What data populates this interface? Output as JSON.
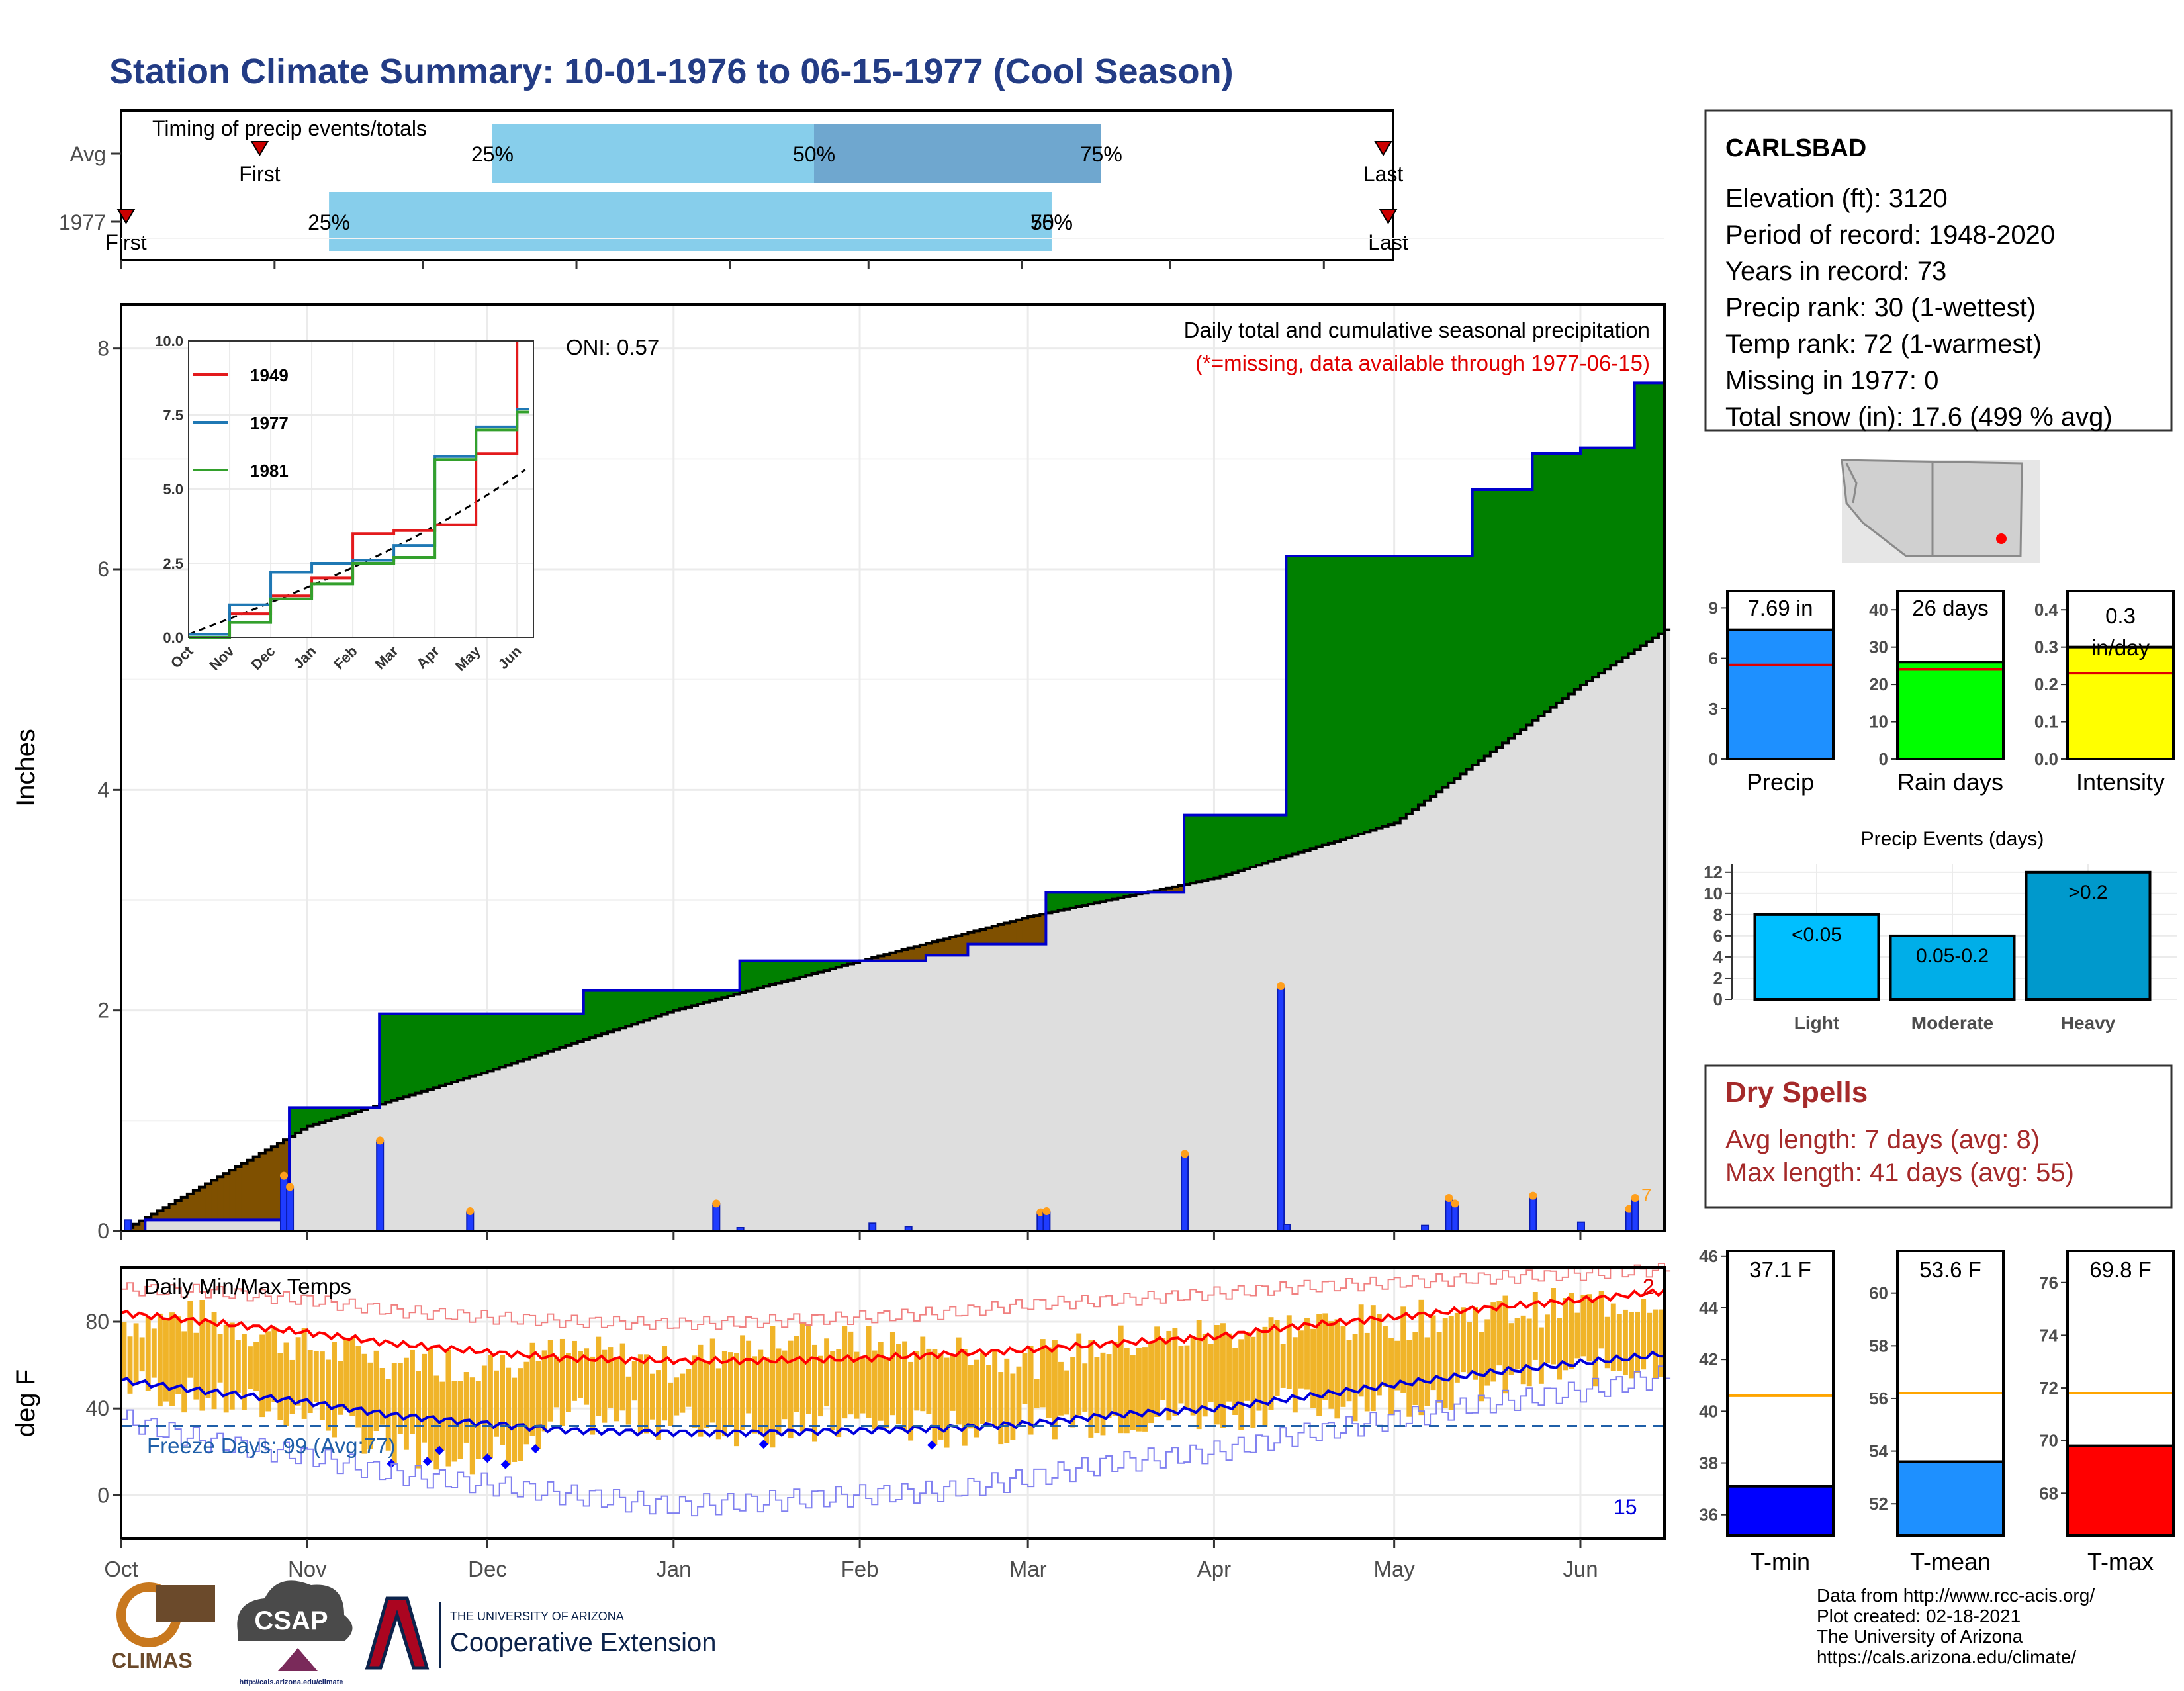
{
  "title": "Station Climate Summary: 10-01-1976 to 06-15-1977 (Cool Season)",
  "timing": {
    "title": "Timing of precip events/totals",
    "rows": [
      {
        "label": "Avg",
        "first": "First",
        "last": "Last",
        "p25": "25%",
        "p50": "50%",
        "p75": "75%"
      },
      {
        "label": "1977",
        "first": "First",
        "last": "Last",
        "p25": "25%",
        "p50": "50%",
        "p75": "75%"
      }
    ]
  },
  "station": {
    "name": "CARLSBAD",
    "lines": [
      "Elevation (ft): 3120",
      "Period of record: 1948-2020",
      "Years in record: 73",
      "Precip rank: 30 (1-wettest)",
      "Temp rank: 72 (1-warmest)",
      "Missing in 1977: 0",
      "Total snow (in): 17.6 (499 % avg)"
    ]
  },
  "precip_panel": {
    "title": "Daily total and cumulative seasonal precipitation",
    "missing_note": "(*=missing, data available through 1977-06-15)",
    "oni": "ONI: 0.57",
    "ylabel": "Inches",
    "yticks": [
      "0",
      "2",
      "4",
      "6",
      "8"
    ],
    "months": [
      "Oct",
      "Nov",
      "Dec",
      "Jan",
      "Feb",
      "Mar",
      "Apr",
      "May",
      "Jun"
    ],
    "end_label": "7"
  },
  "inset": {
    "yticks": [
      "0.0",
      "2.5",
      "5.0",
      "7.5",
      "10.0"
    ],
    "months": [
      "Oct",
      "Nov",
      "Dec",
      "Jan",
      "Feb",
      "Mar",
      "Apr",
      "May",
      "Jun"
    ],
    "legend": [
      {
        "name": "1949",
        "color": "#e31a1c"
      },
      {
        "name": "1977",
        "color": "#1f78b4"
      },
      {
        "name": "1981",
        "color": "#33a02c"
      }
    ]
  },
  "temp_panel": {
    "title": "Daily Min/Max Temps",
    "ylabel": "deg F",
    "yticks": [
      "0",
      "40",
      "80"
    ],
    "freeze": "Freeze Days: 99 (Avg:77)",
    "top_count": "2",
    "bottom_count": "15"
  },
  "summary_bars": [
    {
      "label": "Precip",
      "value_text": "7.69 in",
      "value": 7.69,
      "avg": 5.6,
      "ymax": 10,
      "yticks": [
        "0",
        "3",
        "6",
        "9"
      ],
      "color": "#1e90ff"
    },
    {
      "label": "Rain days",
      "value_text": "26 days",
      "value": 26,
      "avg": 24,
      "ymax": 45,
      "yticks": [
        "0",
        "10",
        "20",
        "30",
        "40"
      ],
      "color": "#00ff00"
    },
    {
      "label": "Intensity",
      "value_text": "0.3 in/day",
      "value": 0.3,
      "avg": 0.23,
      "ymax": 0.45,
      "yticks": [
        "0.0",
        "0.1",
        "0.2",
        "0.3",
        "0.4"
      ],
      "color": "#ffff00"
    }
  ],
  "events": {
    "title": "Precip Events (days)",
    "yticks": [
      "0",
      "2",
      "4",
      "6",
      "8",
      "10",
      "12"
    ],
    "bars": [
      {
        "label": "Light",
        "bar_text": "<0.05",
        "value": 8,
        "color": "#00bfff"
      },
      {
        "label": "Moderate",
        "bar_text": "0.05-0.2",
        "value": 6,
        "color": "#00aee8"
      },
      {
        "label": "Heavy",
        "bar_text": ">0.2",
        "value": 12,
        "color": "#0099cc"
      }
    ]
  },
  "dry_spells": {
    "title": "Dry Spells",
    "avg": "Avg length: 7 days (avg: 8)",
    "max": "Max length: 41 days (avg: 55)"
  },
  "temp_bars": [
    {
      "label": "T-min",
      "value_text": "37.1 F",
      "value": 37.1,
      "avg": 40.6,
      "ymin": 35.2,
      "ymax": 46.2,
      "ticks": [
        "36",
        "38",
        "40",
        "42",
        "44",
        "46"
      ],
      "color": "#0000ff"
    },
    {
      "label": "T-mean",
      "value_text": "53.6 F",
      "value": 53.6,
      "avg": 56.2,
      "ymin": 50.8,
      "ymax": 61.6,
      "ticks": [
        "52",
        "54",
        "56",
        "58",
        "60"
      ],
      "color": "#1e90ff"
    },
    {
      "label": "T-max",
      "value_text": "69.8 F",
      "value": 69.8,
      "avg": 71.8,
      "ymin": 66.4,
      "ymax": 77.2,
      "ticks": [
        "68",
        "70",
        "72",
        "74",
        "76"
      ],
      "color": "#ff0000"
    }
  ],
  "credits": [
    "Data from http://www.rcc-acis.org/",
    "Plot created: 02-18-2021",
    "The University of Arizona",
    "https://cals.arizona.edu/climate/"
  ],
  "logos": {
    "climas": "CLIMAS",
    "csap": "CSAP",
    "csap_url": "http://cals.arizona.edu/climate",
    "ua_small": "THE UNIVERSITY OF ARIZONA",
    "ua_big": "Cooperative Extension"
  },
  "chart_data": [
    {
      "type": "area",
      "name": "cumulative-precip",
      "x_unit": "date",
      "xlabel": "",
      "ylabel": "Inches",
      "ylim": [
        0,
        8.4
      ],
      "grid": true,
      "series": [
        {
          "values_x": [
            "1976-10-01",
            "1976-10-05",
            "1976-10-29",
            "1976-11-12",
            "1976-11-13",
            "1976-12-17",
            "1977-01-08",
            "1977-01-12",
            "1977-02-12",
            "1977-02-19",
            "1977-03-04",
            "1977-03-27",
            "1977-04-13",
            "1977-05-10",
            "1977-05-14",
            "1977-05-24",
            "1977-06-01",
            "1977-06-09",
            "1977-06-10",
            "1977-06-15"
          ],
          "values_y": [
            0.0,
            0.1,
            1.12,
            1.12,
            1.97,
            2.18,
            2.18,
            2.45,
            2.5,
            2.6,
            3.07,
            3.77,
            6.12,
            6.12,
            6.72,
            7.05,
            7.1,
            7.1,
            7.69,
            7.69
          ]
        },
        {
          "values_x": [
            "1976-10-01",
            "1976-11-01",
            "1976-12-01",
            "1977-01-01",
            "1977-02-01",
            "1977-03-01",
            "1977-04-01",
            "1977-05-01",
            "1977-06-01",
            "1977-06-15"
          ],
          "values_y": [
            0.0,
            0.95,
            1.45,
            2.0,
            2.45,
            2.85,
            3.2,
            3.7,
            4.95,
            5.45
          ]
        }
      ]
    },
    {
      "type": "bar",
      "name": "daily-precip",
      "x_unit": "date",
      "ylabel": "Inches",
      "x": [
        "1976-10-02",
        "1976-10-28",
        "1976-10-29",
        "1976-11-13",
        "1976-11-28",
        "1977-01-08",
        "1977-01-12",
        "1977-02-03",
        "1977-02-09",
        "1977-03-03",
        "1977-03-04",
        "1977-03-27",
        "1977-04-12",
        "1977-04-13",
        "1977-05-06",
        "1977-05-10",
        "1977-05-11",
        "1977-05-24",
        "1977-06-01",
        "1977-06-09",
        "1977-06-10"
      ],
      "values": [
        0.1,
        0.5,
        0.4,
        0.82,
        0.18,
        0.25,
        0.03,
        0.07,
        0.04,
        0.17,
        0.18,
        0.7,
        2.22,
        0.06,
        0.05,
        0.3,
        0.25,
        0.32,
        0.08,
        0.2,
        0.3
      ]
    },
    {
      "type": "line",
      "name": "cumulative-precip-years",
      "x_unit": "date",
      "ylim": [
        0,
        10
      ],
      "series": [
        {
          "name": "1949",
          "x": [
            "Oct",
            "Nov",
            "Dec",
            "Jan",
            "Feb",
            "Mar",
            "Apr",
            "May",
            "Jun"
          ],
          "values": [
            0.0,
            0.8,
            1.4,
            2.0,
            3.5,
            3.6,
            3.8,
            6.2,
            10.0
          ]
        },
        {
          "name": "1977",
          "x": [
            "Oct",
            "Nov",
            "Dec",
            "Jan",
            "Feb",
            "Mar",
            "Apr",
            "May",
            "Jun"
          ],
          "values": [
            0.1,
            1.1,
            2.2,
            2.5,
            2.6,
            3.1,
            6.1,
            7.1,
            7.7
          ]
        },
        {
          "name": "1981",
          "x": [
            "Oct",
            "Nov",
            "Dec",
            "Jan",
            "Feb",
            "Mar",
            "Apr",
            "May",
            "Jun"
          ],
          "values": [
            0.0,
            0.5,
            1.3,
            1.8,
            2.5,
            2.7,
            6.0,
            7.0,
            7.6
          ]
        }
      ]
    },
    {
      "type": "line",
      "name": "temperatures",
      "x_unit": "date",
      "ylabel": "deg F",
      "ylim": [
        -20,
        105
      ],
      "x": [
        "1976-10-01",
        "1976-10-15",
        "1976-11-01",
        "1976-11-15",
        "1976-12-01",
        "1976-12-15",
        "1977-01-01",
        "1977-01-15",
        "1977-02-01",
        "1977-02-15",
        "1977-03-01",
        "1977-03-15",
        "1977-04-01",
        "1977-04-15",
        "1977-05-01",
        "1977-05-15",
        "1977-06-01",
        "1977-06-15"
      ],
      "series": [
        {
          "name": "avg max",
          "values": [
            84,
            80,
            75,
            70,
            66,
            63,
            62,
            62,
            63,
            65,
            67,
            70,
            73,
            78,
            82,
            86,
            90,
            94
          ]
        },
        {
          "name": "avg min",
          "values": [
            53,
            48,
            43,
            37,
            33,
            30,
            29,
            29,
            30,
            31,
            33,
            37,
            40,
            45,
            51,
            56,
            61,
            65
          ]
        },
        {
          "name": "record max",
          "values": [
            95,
            94,
            90,
            85,
            82,
            80,
            79,
            80,
            82,
            84,
            88,
            90,
            93,
            96,
            98,
            100,
            102,
            104
          ]
        },
        {
          "name": "record min",
          "values": [
            35,
            25,
            18,
            10,
            5,
            0,
            -5,
            -3,
            0,
            2,
            8,
            15,
            20,
            28,
            35,
            42,
            48,
            55
          ]
        },
        {
          "name": "obs max",
          "values": [
            80,
            82,
            68,
            62,
            60,
            66,
            60,
            72,
            70,
            68,
            62,
            70,
            75,
            78,
            80,
            84,
            88,
            92
          ]
        },
        {
          "name": "obs min",
          "values": [
            52,
            44,
            38,
            22,
            18,
            36,
            34,
            30,
            34,
            30,
            34,
            36,
            38,
            42,
            44,
            50,
            58,
            62
          ]
        }
      ],
      "freeze_line": 32
    },
    {
      "type": "bar",
      "name": "summary",
      "categories": [
        "Precip",
        "Rain days",
        "Intensity"
      ],
      "values": [
        7.69,
        26,
        0.3
      ]
    },
    {
      "type": "bar",
      "name": "precip-events",
      "categories": [
        "Light",
        "Moderate",
        "Heavy"
      ],
      "values": [
        8,
        6,
        12
      ]
    },
    {
      "type": "bar",
      "name": "temperature-summary",
      "categories": [
        "T-min",
        "T-mean",
        "T-max"
      ],
      "values": [
        37.1,
        53.6,
        69.8
      ]
    }
  ]
}
